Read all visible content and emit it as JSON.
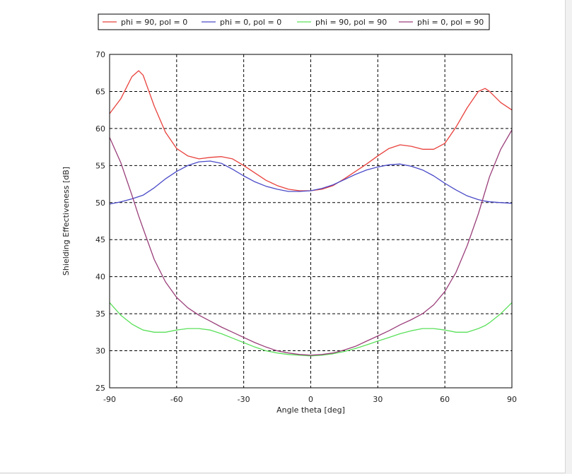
{
  "chart_data": {
    "type": "line",
    "title": "",
    "xlabel": "Angle theta [deg]",
    "ylabel": "Shielding Effectiveness [dB]",
    "xlim": [
      -90,
      90
    ],
    "ylim": [
      25,
      70
    ],
    "xticks": [
      -90,
      -60,
      -30,
      0,
      30,
      60,
      90
    ],
    "yticks": [
      25,
      30,
      35,
      40,
      45,
      50,
      55,
      60,
      65,
      70
    ],
    "grid": true,
    "legend_position": "top",
    "x": [
      -90,
      -85,
      -80,
      -77,
      -75,
      -70,
      -65,
      -60,
      -55,
      -50,
      -45,
      -40,
      -35,
      -30,
      -25,
      -20,
      -15,
      -10,
      -5,
      0,
      5,
      10,
      15,
      20,
      25,
      30,
      35,
      40,
      45,
      50,
      55,
      60,
      65,
      70,
      75,
      78,
      80,
      85,
      90
    ],
    "series": [
      {
        "name": "phi = 90, pol = 0",
        "color": "#e8413c",
        "values": [
          62,
          64,
          67,
          67.8,
          67.2,
          63,
          59.5,
          57.3,
          56.3,
          55.9,
          56.1,
          56.2,
          55.9,
          55,
          54,
          53,
          52.3,
          51.8,
          51.6,
          51.6,
          51.8,
          52.3,
          53.2,
          54.2,
          55.2,
          56.3,
          57.3,
          57.8,
          57.6,
          57.2,
          57.2,
          58,
          60.2,
          62.8,
          65,
          65.4,
          65,
          63.5,
          62.5
        ]
      },
      {
        "name": "phi = 0, pol = 0",
        "color": "#4a4ac8",
        "values": [
          49.8,
          50.1,
          50.5,
          50.8,
          51,
          52,
          53.2,
          54.2,
          55,
          55.5,
          55.6,
          55.3,
          54.5,
          53.6,
          52.8,
          52.2,
          51.8,
          51.5,
          51.5,
          51.6,
          51.9,
          52.4,
          53.1,
          53.8,
          54.4,
          54.8,
          55.1,
          55.2,
          54.9,
          54.4,
          53.6,
          52.6,
          51.7,
          50.9,
          50.4,
          50.2,
          50.1,
          50,
          49.9
        ]
      },
      {
        "name": "phi = 90, pol = 90",
        "color": "#5ae05a",
        "values": [
          36.5,
          34.8,
          33.6,
          33.1,
          32.8,
          32.5,
          32.5,
          32.8,
          33,
          33,
          32.8,
          32.3,
          31.7,
          31.1,
          30.5,
          30,
          29.7,
          29.5,
          29.4,
          29.3,
          29.4,
          29.6,
          29.9,
          30.3,
          30.8,
          31.3,
          31.8,
          32.3,
          32.7,
          33,
          33,
          32.8,
          32.5,
          32.5,
          33,
          33.4,
          33.8,
          35,
          36.5
        ]
      },
      {
        "name": "phi = 0, pol = 90",
        "color": "#9a3f7a",
        "values": [
          58.8,
          55.4,
          51,
          48.2,
          46.5,
          42.3,
          39.3,
          37.2,
          35.8,
          34.8,
          34,
          33.2,
          32.5,
          31.8,
          31.1,
          30.5,
          30,
          29.7,
          29.5,
          29.4,
          29.5,
          29.7,
          30.1,
          30.6,
          31.3,
          32,
          32.7,
          33.5,
          34.2,
          35,
          36.2,
          38,
          40.6,
          44.2,
          48.5,
          51.5,
          53.5,
          57.2,
          59.8
        ]
      }
    ]
  }
}
